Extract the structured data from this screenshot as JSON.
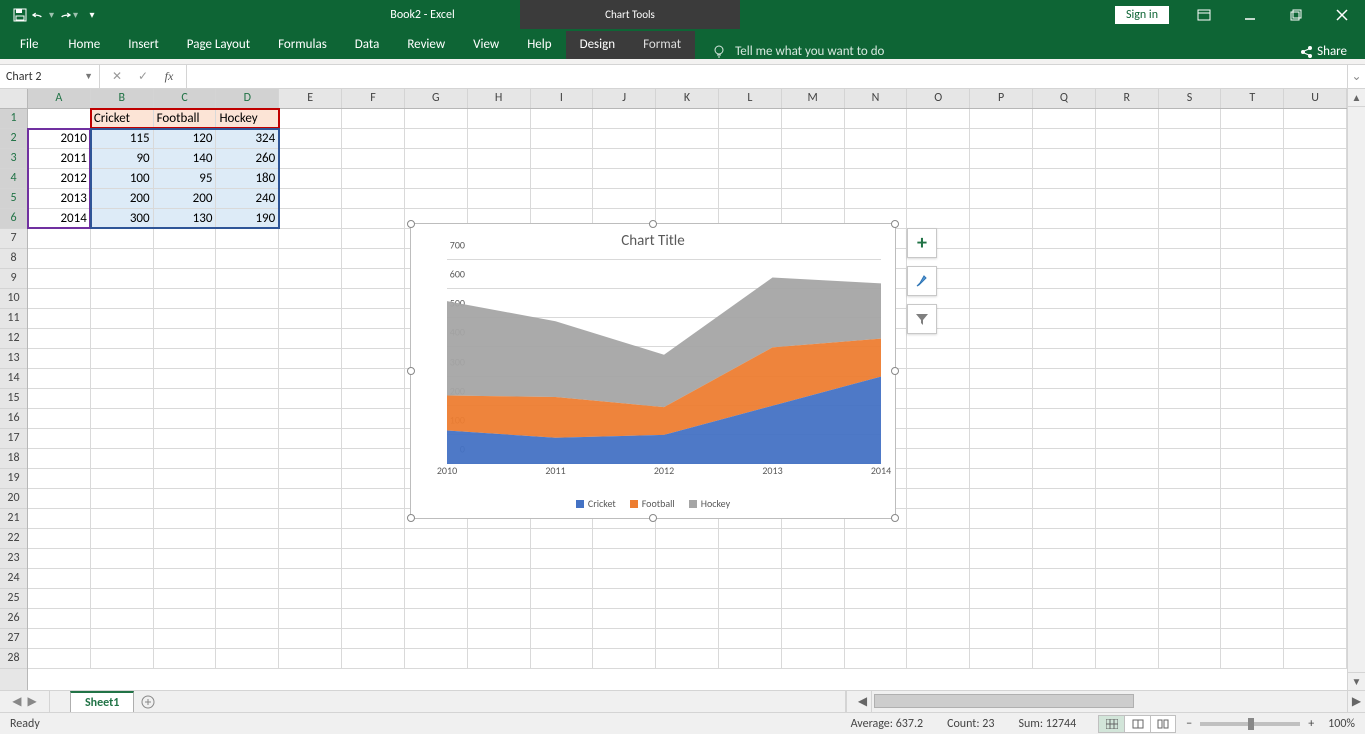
{
  "app": {
    "title": "Book2 - Excel",
    "chart_tools_label": "Chart Tools"
  },
  "qat": {
    "save": "💾",
    "undo": "↶",
    "redo": "↷"
  },
  "window": {
    "signin": "Sign in"
  },
  "ribbon": {
    "file": "File",
    "tabs": [
      "Home",
      "Insert",
      "Page Layout",
      "Formulas",
      "Data",
      "Review",
      "View",
      "Help"
    ],
    "ctx_tabs": [
      "Design",
      "Format"
    ],
    "ctx_active": "Design",
    "tell_me": "Tell me what you want to do",
    "share": "Share"
  },
  "name_box": "Chart 2",
  "formula": "",
  "columns": [
    "A",
    "B",
    "C",
    "D",
    "E",
    "F",
    "G",
    "H",
    "I",
    "J",
    "K",
    "L",
    "M",
    "N",
    "O",
    "P",
    "Q",
    "R",
    "S",
    "T",
    "U"
  ],
  "row_count": 28,
  "selected_rows": [
    1,
    2,
    3,
    4,
    5,
    6
  ],
  "selected_cols": [
    0,
    1,
    2,
    3
  ],
  "data": {
    "headers": [
      "",
      "Cricket",
      "Football",
      "Hockey"
    ],
    "rows": [
      {
        "year": 2010,
        "vals": [
          115,
          120,
          324
        ]
      },
      {
        "year": 2011,
        "vals": [
          90,
          140,
          260
        ]
      },
      {
        "year": 2012,
        "vals": [
          100,
          95,
          180
        ]
      },
      {
        "year": 2013,
        "vals": [
          200,
          200,
          240
        ]
      },
      {
        "year": 2014,
        "vals": [
          300,
          130,
          190
        ]
      }
    ]
  },
  "chart": {
    "type": "area-stacked",
    "title": "Chart Title",
    "categories": [
      2010,
      2011,
      2012,
      2013,
      2014
    ],
    "series": [
      {
        "name": "Cricket",
        "color": "#4472c4",
        "values": [
          115,
          90,
          100,
          200,
          300
        ]
      },
      {
        "name": "Football",
        "color": "#ed7d31",
        "values": [
          120,
          140,
          95,
          200,
          130
        ]
      },
      {
        "name": "Hockey",
        "color": "#a5a5a5",
        "values": [
          324,
          260,
          180,
          240,
          190
        ]
      }
    ],
    "ylim": [
      0,
      700
    ],
    "ytick_step": 100,
    "title_fontsize": 15,
    "axis_fontsize": 10,
    "grid_color": "#d9d9d9",
    "background_color": "#ffffff"
  },
  "sheet": {
    "active": "Sheet1"
  },
  "status": {
    "mode": "Ready",
    "average_label": "Average:",
    "average": "637.2",
    "count_label": "Count:",
    "count": "23",
    "sum_label": "Sum:",
    "sum": "12744",
    "zoom": "100%"
  }
}
